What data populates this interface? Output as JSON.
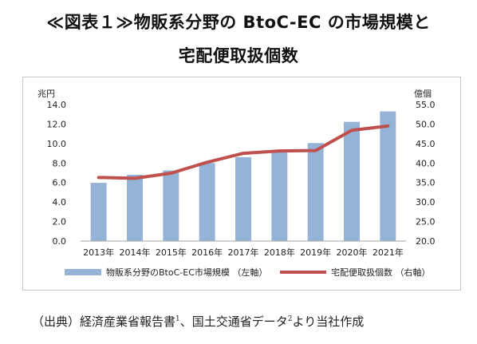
{
  "title": {
    "line1": "≪図表１≫物販系分野の BtoC-EC の市場規模と",
    "line2": "宅配便取扱個数"
  },
  "chart_data": {
    "type": "bar+line",
    "categories": [
      "2013年",
      "2014年",
      "2015年",
      "2016年",
      "2017年",
      "2018年",
      "2019年",
      "2020年",
      "2021年"
    ],
    "left_axis": {
      "unit": "兆円",
      "ylim": [
        0,
        14
      ],
      "ticks": [
        "0.0",
        "2.0",
        "4.0",
        "6.0",
        "8.0",
        "10.0",
        "12.0",
        "14.0"
      ]
    },
    "right_axis": {
      "unit": "億個",
      "ylim": [
        20,
        55
      ],
      "ticks": [
        "20.0",
        "25.0",
        "30.0",
        "35.0",
        "40.0",
        "45.0",
        "50.0",
        "55.0"
      ]
    },
    "series": [
      {
        "name": "物販系分野のBtoC-EC市場規模 （左軸）",
        "type": "bar",
        "axis": "left",
        "color": "#94b3d7",
        "values": [
          5.97,
          6.8,
          7.24,
          8.0,
          8.6,
          9.3,
          10.05,
          12.23,
          13.3
        ]
      },
      {
        "name": "宅配便取扱個数 （右軸）",
        "type": "line",
        "axis": "right",
        "color": "#c0504d",
        "values": [
          36.3,
          36.1,
          37.4,
          40.2,
          42.5,
          43.1,
          43.2,
          48.4,
          49.5
        ]
      }
    ],
    "grid": false,
    "legend_position": "bottom"
  },
  "source": {
    "text_before_1": "（出典）経済産業省報告書",
    "ref1": "1",
    "text_between": "、国土交通省データ",
    "ref2": "2",
    "text_after": "より当社作成"
  }
}
